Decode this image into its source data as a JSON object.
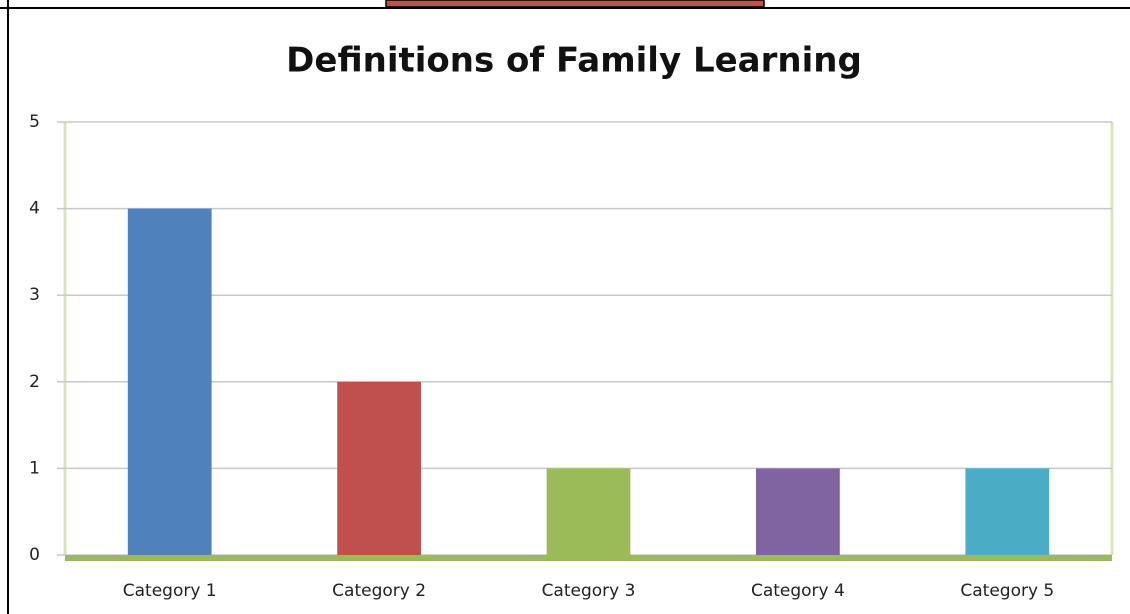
{
  "chart_data": {
    "type": "bar",
    "title": "Definitions of Family Learning",
    "categories": [
      "Category 1",
      "Category 2",
      "Category 3",
      "Category 4",
      "Category 5"
    ],
    "values": [
      4,
      2,
      1,
      1,
      1
    ],
    "colors": [
      "#4f81bd",
      "#c0504d",
      "#9bbb59",
      "#8064a2",
      "#4bacc6"
    ],
    "ylim": [
      0,
      5
    ],
    "yticks": [
      0,
      1,
      2,
      3,
      4,
      5
    ],
    "grid": true
  }
}
